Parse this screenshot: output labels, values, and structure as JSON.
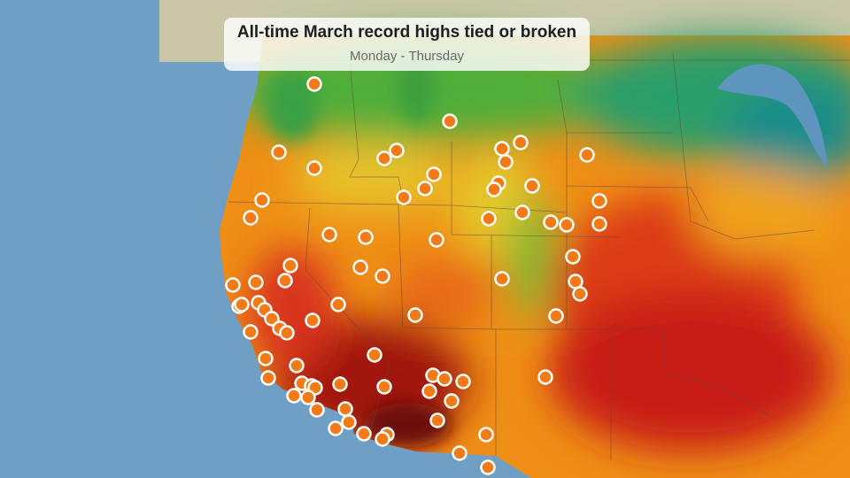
{
  "header": {
    "title": "All-time March record highs tied or broken",
    "subtitle": "Monday - Thursday"
  },
  "map": {
    "region": "Western United States",
    "layer": "temperature",
    "marker_meaning": "station with all-time March record high tied or broken",
    "colors": {
      "ocean": "#6f9fc4",
      "marker_fill": "#f47a16",
      "marker_stroke": "#ffffff",
      "hottest": "#8c0a0a",
      "hot": "#d8261a",
      "warm": "#f08a14",
      "mild": "#f2c21e",
      "cool": "#5cb838",
      "cold": "#1e9a8a"
    }
  }
}
